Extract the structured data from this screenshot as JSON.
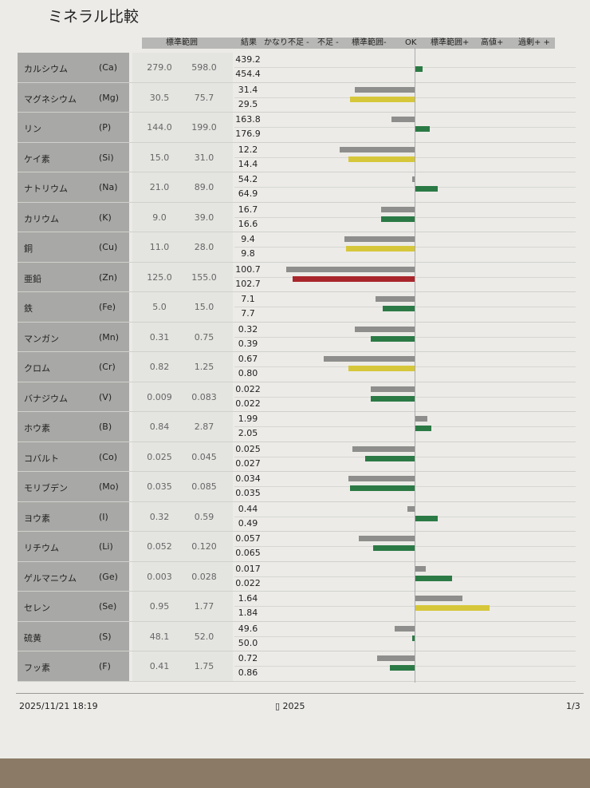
{
  "title": "ミネラル比較",
  "header": {
    "range_label": "標準範囲",
    "result_label": "結果",
    "categories": [
      "かなり不足 -",
      "不足 -",
      "標準範囲-",
      "OK",
      "標準範囲+",
      "高値+",
      "過剰+ +"
    ]
  },
  "colors": {
    "previous": "#8e8e8c",
    "green": "#2b7a45",
    "yellow": "#d6c73a",
    "red": "#a8262b"
  },
  "chart_data": {
    "type": "bar",
    "orientation": "horizontal-diverging",
    "scale_categories": [
      "かなり不足 -",
      "不足 -",
      "標準範囲-",
      "OK",
      "標準範囲+",
      "高値+",
      "過剰+ +"
    ],
    "rows": [
      {
        "name": "カルシウム",
        "symbol": "(Ca)",
        "low": "279.0",
        "high": "598.0",
        "v1": "439.2",
        "v2": "454.4",
        "b1": 0,
        "b2": 0.2,
        "c2": "green"
      },
      {
        "name": "マグネシウム",
        "symbol": "(Mg)",
        "low": "30.5",
        "high": "75.7",
        "v1": "31.4",
        "v2": "29.5",
        "b1": -1.45,
        "b2": -1.55,
        "c2": "yellow"
      },
      {
        "name": "リン",
        "symbol": "(P)",
        "low": "144.0",
        "high": "199.0",
        "v1": "163.8",
        "v2": "176.9",
        "b1": -0.55,
        "b2": 0.37,
        "c2": "green"
      },
      {
        "name": "ケイ素",
        "symbol": "(Si)",
        "low": "15.0",
        "high": "31.0",
        "v1": "12.2",
        "v2": "14.4",
        "b1": -1.8,
        "b2": -1.6,
        "c2": "yellow"
      },
      {
        "name": "ナトリウム",
        "symbol": "(Na)",
        "low": "21.0",
        "high": "89.0",
        "v1": "54.2",
        "v2": "64.9",
        "b1": -0.05,
        "b2": 0.55,
        "c2": "green"
      },
      {
        "name": "カリウム",
        "symbol": "(K)",
        "low": "9.0",
        "high": "39.0",
        "v1": "16.7",
        "v2": "16.6",
        "b1": -0.8,
        "b2": -0.8,
        "c2": "green"
      },
      {
        "name": "銅",
        "symbol": "(Cu)",
        "low": "11.0",
        "high": "28.0",
        "v1": "9.4",
        "v2": "9.8",
        "b1": -1.7,
        "b2": -1.65,
        "c2": "yellow"
      },
      {
        "name": "亜鉛",
        "symbol": "(Zn)",
        "low": "125.0",
        "high": "155.0",
        "v1": "100.7",
        "v2": "102.7",
        "b1": -3.1,
        "b2": -2.95,
        "c2": "red"
      },
      {
        "name": "鉄",
        "symbol": "(Fe)",
        "low": "5.0",
        "high": "15.0",
        "v1": "7.1",
        "v2": "7.7",
        "b1": -0.95,
        "b2": -0.77,
        "c2": "green"
      },
      {
        "name": "マンガン",
        "symbol": "(Mn)",
        "low": "0.31",
        "high": "0.75",
        "v1": "0.32",
        "v2": "0.39",
        "b1": -1.45,
        "b2": -1.05,
        "c2": "green"
      },
      {
        "name": "クロム",
        "symbol": "(Cr)",
        "low": "0.82",
        "high": "1.25",
        "v1": "0.67",
        "v2": "0.80",
        "b1": -2.2,
        "b2": -1.6,
        "c2": "yellow"
      },
      {
        "name": "バナジウム",
        "symbol": "(V)",
        "low": "0.009",
        "high": "0.083",
        "v1": "0.022",
        "v2": "0.022",
        "b1": -1.05,
        "b2": -1.05,
        "c2": "green"
      },
      {
        "name": "ホウ素",
        "symbol": "(B)",
        "low": "0.84",
        "high": "2.87",
        "v1": "1.99",
        "v2": "2.05",
        "b1": 0.3,
        "b2": 0.4,
        "c2": "green"
      },
      {
        "name": "コバルト",
        "symbol": "(Co)",
        "low": "0.025",
        "high": "0.045",
        "v1": "0.025",
        "v2": "0.027",
        "b1": -1.5,
        "b2": -1.2,
        "c2": "green"
      },
      {
        "name": "モリブデン",
        "symbol": "(Mo)",
        "low": "0.035",
        "high": "0.085",
        "v1": "0.034",
        "v2": "0.035",
        "b1": -1.6,
        "b2": -1.55,
        "c2": "green"
      },
      {
        "name": "ヨウ素",
        "symbol": "(I)",
        "low": "0.32",
        "high": "0.59",
        "v1": "0.44",
        "v2": "0.49",
        "b1": -0.17,
        "b2": 0.55,
        "c2": "green"
      },
      {
        "name": "リチウム",
        "symbol": "(Li)",
        "low": "0.052",
        "high": "0.120",
        "v1": "0.057",
        "v2": "0.065",
        "b1": -1.35,
        "b2": -1.0,
        "c2": "green"
      },
      {
        "name": "ゲルマニウム",
        "symbol": "(Ge)",
        "low": "0.003",
        "high": "0.028",
        "v1": "0.017",
        "v2": "0.022",
        "b1": 0.27,
        "b2": 0.9,
        "c2": "green"
      },
      {
        "name": "セレン",
        "symbol": "(Se)",
        "low": "0.95",
        "high": "1.77",
        "v1": "1.64",
        "v2": "1.84",
        "b1": 1.15,
        "b2": 1.8,
        "c2": "yellow"
      },
      {
        "name": "硫黄",
        "symbol": "(S)",
        "low": "48.1",
        "high": "52.0",
        "v1": "49.6",
        "v2": "50.0",
        "b1": -0.48,
        "b2": -0.06,
        "c2": "green"
      },
      {
        "name": "フッ素",
        "symbol": "(F)",
        "low": "0.41",
        "high": "1.75",
        "v1": "0.72",
        "v2": "0.86",
        "b1": -0.9,
        "b2": -0.6,
        "c2": "green"
      }
    ]
  },
  "footer": {
    "datetime": "2025/11/21 18:19",
    "center": "▯ 2025",
    "page": "1/3"
  }
}
